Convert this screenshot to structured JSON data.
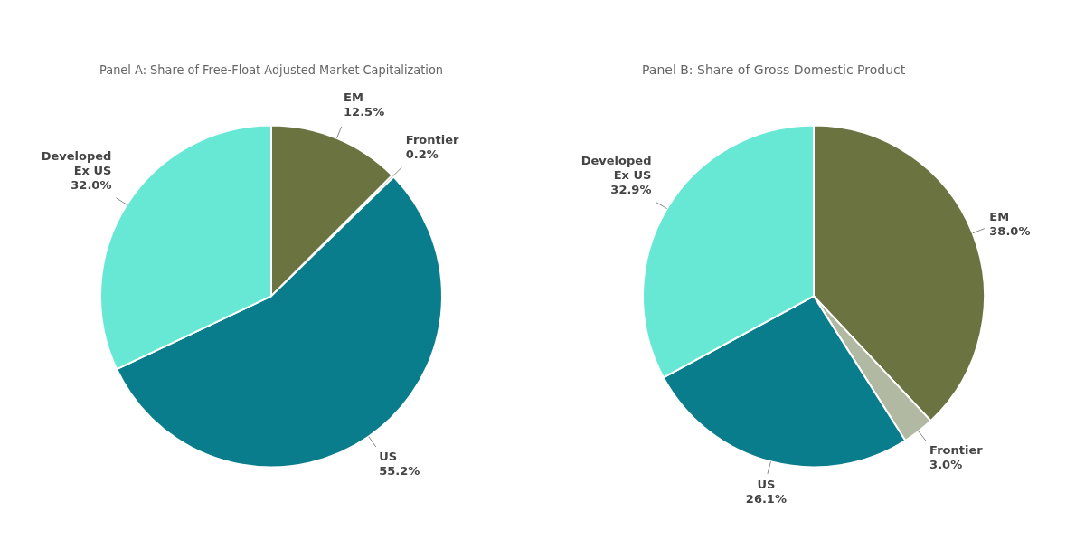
{
  "chart_data": [
    {
      "type": "pie",
      "title": "Panel A: Share of Free-Float Adjusted Market Capitalization",
      "categories": [
        "EM",
        "Frontier",
        "US",
        "Developed\nEx US"
      ],
      "values": [
        12.5,
        0.2,
        55.2,
        32.0
      ],
      "value_labels": [
        "12.5%",
        "0.2%",
        "55.2%",
        "32.0%"
      ],
      "colors": [
        "#6b7440",
        "#6b7440",
        "#0a7d8c",
        "#67e8d5"
      ],
      "data_labels": true
    },
    {
      "type": "pie",
      "title": "Panel B: Share of Gross Domestic Product",
      "categories": [
        "EM",
        "Frontier",
        "US",
        "Developed\nEx US"
      ],
      "values": [
        38.0,
        3.0,
        26.1,
        32.9
      ],
      "value_labels": [
        "38.0%",
        "3.0%",
        "26.1%",
        "32.9%"
      ],
      "colors": [
        "#6b7440",
        "#b2b9a2",
        "#0a7d8c",
        "#67e8d5"
      ],
      "data_labels": true
    }
  ]
}
